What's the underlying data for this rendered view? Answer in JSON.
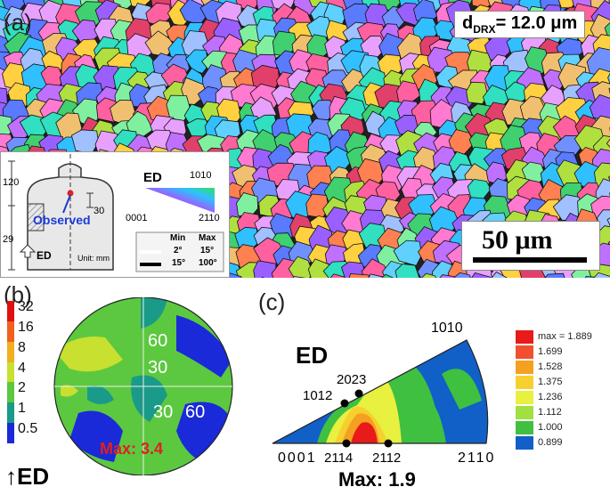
{
  "panel_a": {
    "letter": "(a)",
    "grain_size_label": "d",
    "grain_size_sub": "DRX",
    "grain_size_value": "= 12.0 μm",
    "scale_bar": "50 μm",
    "inset": {
      "dim_120": "120",
      "dim_29": "29",
      "dim_30": "30",
      "observed": "Observed",
      "ed": "ED",
      "unit": "Unit: mm"
    },
    "ipf_key": {
      "ed": "ED",
      "corner_top": "1010",
      "corner_left": "0001",
      "corner_right": "2110"
    },
    "boundary_table": {
      "min_header": "Min",
      "max_header": "Max",
      "row1_min": "2°",
      "row1_max": "15°",
      "row2_min": "15°",
      "row2_max": "100°"
    }
  },
  "panel_b": {
    "letter": "(b)",
    "ed_label": "ED",
    "max_label": "Max: 3.4",
    "angles": [
      "60",
      "30",
      "30",
      "60"
    ],
    "colorbar": [
      {
        "label": "32",
        "color": "#e01010"
      },
      {
        "label": "16",
        "color": "#f06020"
      },
      {
        "label": "8",
        "color": "#f2b020"
      },
      {
        "label": "4",
        "color": "#c8e030"
      },
      {
        "label": "2",
        "color": "#5cc840"
      },
      {
        "label": "1",
        "color": "#1a9a88"
      },
      {
        "label": "0.5",
        "color": "#1a2ad8"
      }
    ]
  },
  "panel_c": {
    "letter": "(c)",
    "ed_label": "ED",
    "max_label": "Max: 1.9",
    "corner_top": "1010",
    "corner_left": "0001",
    "corner_right": "2110",
    "poles": [
      "1012",
      "2023",
      "2114",
      "2112"
    ],
    "colorbar": [
      {
        "label": "max = 1.889",
        "color": "#e81a1a"
      },
      {
        "label": "1.699",
        "color": "#f05030"
      },
      {
        "label": "1.528",
        "color": "#f5a020"
      },
      {
        "label": "1.375",
        "color": "#f7d030"
      },
      {
        "label": "1.236",
        "color": "#e8f040"
      },
      {
        "label": "1.112",
        "color": "#a0e040"
      },
      {
        "label": "1.000",
        "color": "#40c040"
      },
      {
        "label": "0.899",
        "color": "#1060c8"
      }
    ]
  },
  "colors": {
    "accent_red": "#e02020",
    "ipf_blue": "#1a3ad8"
  }
}
